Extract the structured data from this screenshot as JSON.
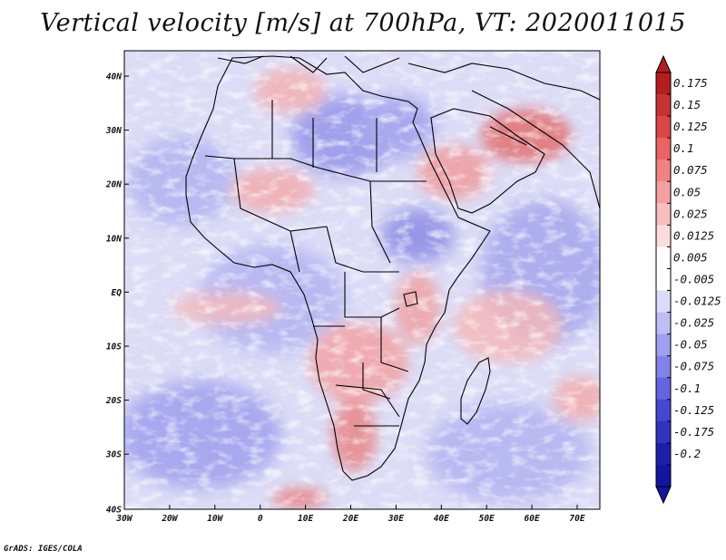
{
  "title": "Vertical velocity [m/s] at 700hPa, VT: 2020011015",
  "footer": "GrADS: IGES/COLA",
  "map": {
    "lon_range": [
      -30,
      75
    ],
    "lat_range": [
      -40,
      45
    ],
    "lat_labels": [
      "40N",
      "30N",
      "20N",
      "10N",
      "EQ",
      "10S",
      "20S",
      "30S",
      "40S"
    ],
    "lon_labels": [
      "30W",
      "20W",
      "10W",
      "0",
      "10E",
      "20E",
      "30E",
      "40E",
      "50E",
      "60E",
      "70E"
    ]
  },
  "colorbar": {
    "labels": [
      "0.175",
      "0.15",
      "0.125",
      "0.1",
      "0.075",
      "0.05",
      "0.025",
      "0.0125",
      "0.005",
      "-0.005",
      "-0.0125",
      "-0.025",
      "-0.05",
      "-0.075",
      "-0.1",
      "-0.125",
      "-0.175",
      "-0.2"
    ],
    "colors": [
      "#b41e1e",
      "#c83232",
      "#dc4646",
      "#eb6464",
      "#f08282",
      "#f5a0a0",
      "#f8bebe",
      "#fbdcdc",
      "#ffffff",
      "#ffffff",
      "#dcdcfa",
      "#bebef5",
      "#a0a0f0",
      "#8282eb",
      "#6464e1",
      "#4646d2",
      "#3232be",
      "#1e1eaa",
      "#1414a0"
    ]
  }
}
